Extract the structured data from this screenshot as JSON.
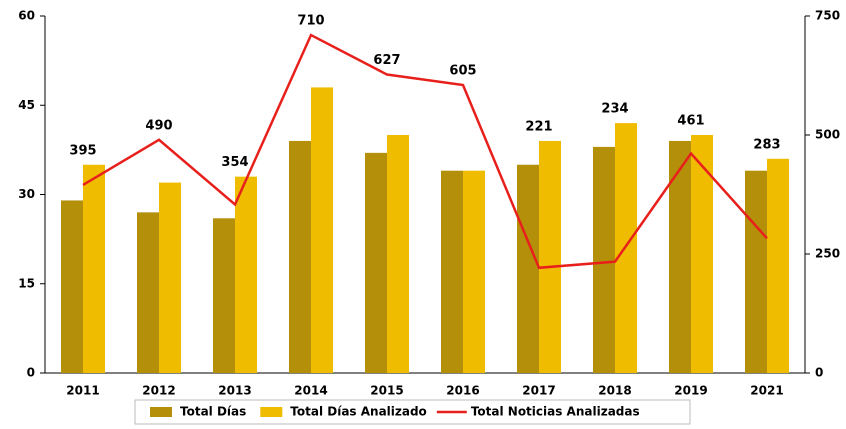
{
  "chart_data": {
    "type": "bar",
    "categories": [
      "2011",
      "2012",
      "2013",
      "2014",
      "2015",
      "2016",
      "2017",
      "2018",
      "2019",
      "2021"
    ],
    "series": [
      {
        "name": "Total Días",
        "color": "#b38f0a",
        "values": [
          29,
          27,
          26,
          39,
          37,
          34,
          35,
          38,
          39,
          34
        ]
      },
      {
        "name": "Total Días Analizado",
        "color": "#f0bc00",
        "values": [
          35,
          32,
          33,
          48,
          40,
          34,
          39,
          42,
          40,
          36
        ]
      },
      {
        "name": "Total Noticias Analizadas",
        "color": "#e8201c",
        "type": "line",
        "axis": "y2",
        "values": [
          395,
          490,
          354,
          710,
          627,
          605,
          221,
          234,
          461,
          283
        ]
      }
    ],
    "ylim": [
      0,
      60
    ],
    "yticks": [
      0,
      15,
      30,
      45,
      60
    ],
    "y2lim": [
      0,
      750
    ],
    "y2ticks": [
      0,
      250,
      500,
      750
    ],
    "legend": "bottom"
  }
}
